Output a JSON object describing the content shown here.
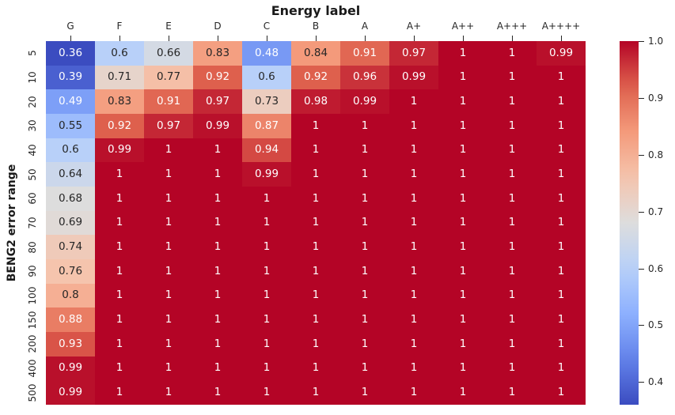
{
  "chart_data": {
    "type": "heatmap",
    "title": "Energy label",
    "ylabel": "BENG2 error range",
    "colormap": "coolwarm",
    "vmin": 0.36,
    "vmax": 1.0,
    "colormap_min_color": "#3B4CC0",
    "colormap_mid_color": "#DDDDDD",
    "colormap_max_color": "#B40426",
    "annotation_dark_text_color": "#262626",
    "annotation_light_text_color": "#FFFFFF",
    "x_categories": [
      "G",
      "F",
      "E",
      "D",
      "C",
      "B",
      "A",
      "A+",
      "A++",
      "A+++",
      "A++++"
    ],
    "y_categories": [
      "5",
      "10",
      "20",
      "30",
      "40",
      "50",
      "60",
      "70",
      "80",
      "90",
      "100",
      "150",
      "200",
      "400",
      "500"
    ],
    "values": [
      [
        0.36,
        0.6,
        0.66,
        0.83,
        0.48,
        0.84,
        0.91,
        0.97,
        1,
        1,
        0.99
      ],
      [
        0.39,
        0.71,
        0.77,
        0.92,
        0.6,
        0.92,
        0.96,
        0.99,
        1,
        1,
        1
      ],
      [
        0.49,
        0.83,
        0.91,
        0.97,
        0.73,
        0.98,
        0.99,
        1,
        1,
        1,
        1
      ],
      [
        0.55,
        0.92,
        0.97,
        0.99,
        0.87,
        1,
        1,
        1,
        1,
        1,
        1
      ],
      [
        0.6,
        0.99,
        1,
        1,
        0.94,
        1,
        1,
        1,
        1,
        1,
        1
      ],
      [
        0.64,
        1,
        1,
        1,
        0.99,
        1,
        1,
        1,
        1,
        1,
        1
      ],
      [
        0.68,
        1,
        1,
        1,
        1,
        1,
        1,
        1,
        1,
        1,
        1
      ],
      [
        0.69,
        1,
        1,
        1,
        1,
        1,
        1,
        1,
        1,
        1,
        1
      ],
      [
        0.74,
        1,
        1,
        1,
        1,
        1,
        1,
        1,
        1,
        1,
        1
      ],
      [
        0.76,
        1,
        1,
        1,
        1,
        1,
        1,
        1,
        1,
        1,
        1
      ],
      [
        0.8,
        1,
        1,
        1,
        1,
        1,
        1,
        1,
        1,
        1,
        1
      ],
      [
        0.88,
        1,
        1,
        1,
        1,
        1,
        1,
        1,
        1,
        1,
        1
      ],
      [
        0.93,
        1,
        1,
        1,
        1,
        1,
        1,
        1,
        1,
        1,
        1
      ],
      [
        0.99,
        1,
        1,
        1,
        1,
        1,
        1,
        1,
        1,
        1,
        1
      ],
      [
        0.99,
        1,
        1,
        1,
        1,
        1,
        1,
        1,
        1,
        1,
        1
      ]
    ],
    "colorbar": {
      "tick_labels": [
        "1.0",
        "0.9",
        "0.8",
        "0.7",
        "0.6",
        "0.5",
        "0.4"
      ],
      "position": "right"
    },
    "grid": false,
    "legend_position": "none"
  }
}
